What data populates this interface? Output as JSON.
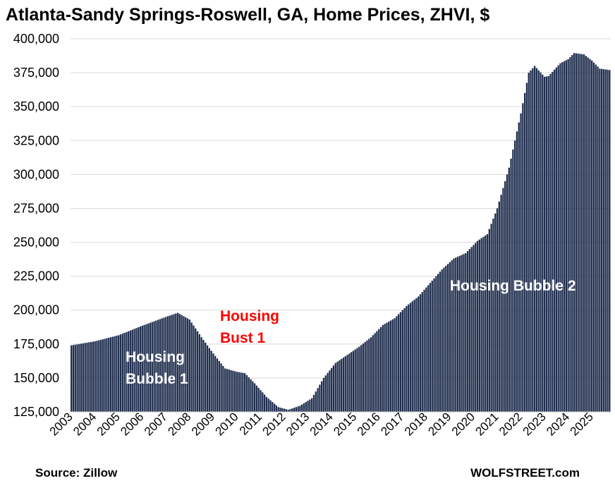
{
  "chart_data": {
    "type": "bar",
    "title": "Atlanta-Sandy Springs-Roswell, GA, Home Prices, ZHVI, $",
    "xlabel": "",
    "ylabel": "",
    "ylim": [
      125000,
      400000
    ],
    "y_ticks": [
      "125,000",
      "150,000",
      "175,000",
      "200,000",
      "225,000",
      "250,000",
      "275,000",
      "300,000",
      "325,000",
      "350,000",
      "375,000",
      "400,000"
    ],
    "x_ticks": [
      "2003",
      "2004",
      "2005",
      "2006",
      "2007",
      "2008",
      "2009",
      "2010",
      "2011",
      "2012",
      "2013",
      "2014",
      "2015",
      "2016",
      "2017",
      "2018",
      "2019",
      "2020",
      "2021",
      "2022",
      "2023",
      "2024",
      "2025"
    ],
    "grid": true,
    "bar_color": "#1f2d4d",
    "anchors": [
      [
        "2003-01",
        174000
      ],
      [
        "2004-01",
        177000
      ],
      [
        "2005-01",
        181500
      ],
      [
        "2006-01",
        188500
      ],
      [
        "2007-01",
        195000
      ],
      [
        "2007-07",
        198000
      ],
      [
        "2008-01",
        193000
      ],
      [
        "2008-07",
        180000
      ],
      [
        "2009-01",
        168000
      ],
      [
        "2009-07",
        157000
      ],
      [
        "2010-01",
        154500
      ],
      [
        "2010-05",
        153500
      ],
      [
        "2010-10",
        146000
      ],
      [
        "2011-04",
        136000
      ],
      [
        "2011-10",
        128500
      ],
      [
        "2012-03",
        126500
      ],
      [
        "2012-09",
        129500
      ],
      [
        "2013-03",
        135000
      ],
      [
        "2013-09",
        150000
      ],
      [
        "2014-03",
        161000
      ],
      [
        "2014-09",
        167000
      ],
      [
        "2015-03",
        173000
      ],
      [
        "2015-09",
        180000
      ],
      [
        "2016-03",
        189000
      ],
      [
        "2016-09",
        194000
      ],
      [
        "2017-03",
        203000
      ],
      [
        "2017-09",
        210000
      ],
      [
        "2018-03",
        220000
      ],
      [
        "2018-09",
        230000
      ],
      [
        "2019-03",
        238000
      ],
      [
        "2019-09",
        242000
      ],
      [
        "2020-03",
        251000
      ],
      [
        "2020-08",
        256000
      ],
      [
        "2021-01",
        275000
      ],
      [
        "2021-07",
        305000
      ],
      [
        "2022-01",
        345000
      ],
      [
        "2022-05",
        375000
      ],
      [
        "2022-08",
        380000
      ],
      [
        "2023-01",
        372000
      ],
      [
        "2023-03",
        372500
      ],
      [
        "2023-09",
        382000
      ],
      [
        "2024-01",
        385000
      ],
      [
        "2024-04",
        389500
      ],
      [
        "2024-09",
        388500
      ],
      [
        "2025-01",
        384000
      ],
      [
        "2025-05",
        378000
      ],
      [
        "2025-10",
        377000
      ]
    ],
    "annotations": [
      {
        "lines": [
          "Housing",
          "Bubble 1"
        ],
        "color": "#ffffff"
      },
      {
        "lines": [
          "Housing",
          "Bust 1"
        ],
        "color": "#ff0000"
      },
      {
        "lines": [
          "Housing Bubble 2"
        ],
        "color": "#ffffff"
      }
    ]
  },
  "footer": {
    "source": "Source: Zillow",
    "brand": "WOLFSTREET.com"
  }
}
